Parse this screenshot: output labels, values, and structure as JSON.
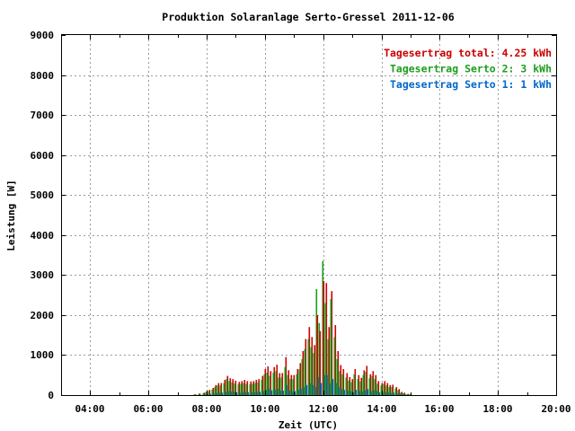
{
  "chart_data": {
    "type": "bar",
    "title": "Produktion Solaranlage Serto-Gressel 2011-12-06",
    "xlabel": "Zeit (UTC)",
    "ylabel": "Leistung [W]",
    "x_range_hours": [
      3,
      20
    ],
    "ylim": [
      0,
      9000
    ],
    "x_ticks": [
      {
        "hour": 4,
        "label": "04:00"
      },
      {
        "hour": 6,
        "label": "06:00"
      },
      {
        "hour": 8,
        "label": "08:00"
      },
      {
        "hour": 10,
        "label": "10:00"
      },
      {
        "hour": 12,
        "label": "12:00"
      },
      {
        "hour": 14,
        "label": "14:00"
      },
      {
        "hour": 16,
        "label": "16:00"
      },
      {
        "hour": 18,
        "label": "18:00"
      },
      {
        "hour": 20,
        "label": "20:00"
      }
    ],
    "y_ticks": [
      {
        "value": 0,
        "label": "0"
      },
      {
        "value": 1000,
        "label": "1000"
      },
      {
        "value": 2000,
        "label": "2000"
      },
      {
        "value": 3000,
        "label": "3000"
      },
      {
        "value": 4000,
        "label": "4000"
      },
      {
        "value": 5000,
        "label": "5000"
      },
      {
        "value": 6000,
        "label": "6000"
      },
      {
        "value": 7000,
        "label": "7000"
      },
      {
        "value": 8000,
        "label": "8000"
      },
      {
        "value": 9000,
        "label": "9000"
      }
    ],
    "grid": true,
    "legend_position": "top-right",
    "legend": [
      {
        "label": "Tagesertrag total:",
        "value": "4.25 kWh",
        "color": "#cc0000"
      },
      {
        "label": "Tagesertrag Serto 2:",
        "value": "3 kWh",
        "color": "#1a9e1a"
      },
      {
        "label": "Tagesertrag Serto 1:",
        "value": "1 kWh",
        "color": "#0066cc"
      }
    ],
    "bars": {
      "hours": [
        7.6,
        7.75,
        7.9,
        8.0,
        8.1,
        8.2,
        8.3,
        8.4,
        8.5,
        8.6,
        8.7,
        8.8,
        8.9,
        9.0,
        9.1,
        9.2,
        9.3,
        9.4,
        9.5,
        9.6,
        9.7,
        9.8,
        9.9,
        10.0,
        10.1,
        10.2,
        10.3,
        10.4,
        10.5,
        10.6,
        10.7,
        10.8,
        10.9,
        11.0,
        11.1,
        11.2,
        11.3,
        11.4,
        11.5,
        11.6,
        11.7,
        11.8,
        11.9,
        12.0,
        12.1,
        12.2,
        12.3,
        12.4,
        12.5,
        12.6,
        12.7,
        12.8,
        12.9,
        13.0,
        13.1,
        13.2,
        13.3,
        13.4,
        13.5,
        13.6,
        13.7,
        13.8,
        13.9,
        14.0,
        14.1,
        14.2,
        14.3,
        14.4,
        14.5,
        14.6,
        14.7,
        14.8,
        14.9,
        15.0
      ],
      "total": [
        20,
        40,
        60,
        90,
        130,
        180,
        250,
        300,
        300,
        380,
        480,
        420,
        400,
        360,
        330,
        350,
        380,
        350,
        340,
        350,
        380,
        400,
        480,
        650,
        720,
        600,
        700,
        760,
        550,
        550,
        950,
        620,
        500,
        500,
        650,
        800,
        1100,
        1400,
        1700,
        1450,
        1250,
        2000,
        1600,
        2850,
        2800,
        1700,
        2600,
        1750,
        1100,
        750,
        650,
        550,
        450,
        400,
        650,
        500,
        430,
        620,
        730,
        520,
        600,
        500,
        350,
        300,
        350,
        300,
        250,
        260,
        200,
        150,
        80,
        60,
        30,
        20
      ],
      "serto2": [
        15,
        30,
        45,
        70,
        100,
        140,
        200,
        240,
        240,
        300,
        400,
        350,
        320,
        290,
        270,
        280,
        300,
        280,
        270,
        280,
        300,
        320,
        380,
        520,
        560,
        480,
        560,
        600,
        440,
        440,
        700,
        500,
        400,
        400,
        520,
        640,
        900,
        1150,
        1400,
        1200,
        1050,
        2650,
        1800,
        3350,
        2300,
        1400,
        2400,
        1450,
        900,
        600,
        520,
        440,
        360,
        320,
        520,
        400,
        340,
        500,
        580,
        420,
        480,
        400,
        280,
        240,
        280,
        240,
        200,
        200,
        160,
        120,
        60,
        45,
        25,
        15
      ],
      "serto1": [
        5,
        10,
        15,
        20,
        30,
        40,
        50,
        60,
        60,
        80,
        100,
        90,
        80,
        70,
        60,
        70,
        80,
        70,
        70,
        70,
        80,
        80,
        100,
        130,
        160,
        120,
        140,
        160,
        110,
        110,
        250,
        120,
        100,
        100,
        130,
        160,
        200,
        250,
        300,
        250,
        200,
        450,
        300,
        500,
        500,
        300,
        400,
        300,
        200,
        150,
        130,
        110,
        90,
        80,
        130,
        100,
        90,
        120,
        150,
        100,
        120,
        100,
        70,
        60,
        70,
        60,
        50,
        60,
        40,
        30,
        20,
        15,
        5,
        5
      ]
    }
  }
}
